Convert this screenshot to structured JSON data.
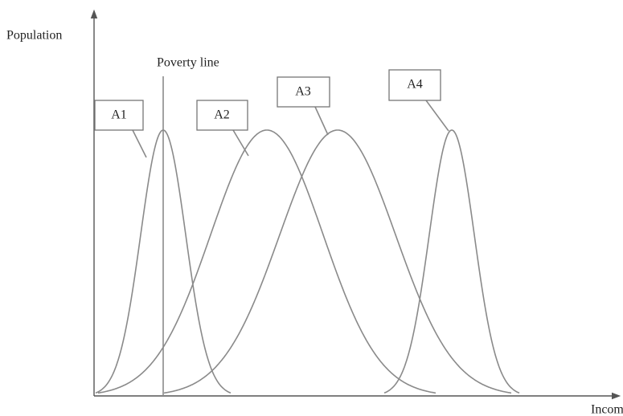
{
  "axes": {
    "y_label": "Population",
    "x_label": "Income"
  },
  "poverty_line": {
    "label": "Poverty line"
  },
  "curves": [
    {
      "label": "A1"
    },
    {
      "label": "A2"
    },
    {
      "label": "A3"
    },
    {
      "label": "A4"
    }
  ]
}
